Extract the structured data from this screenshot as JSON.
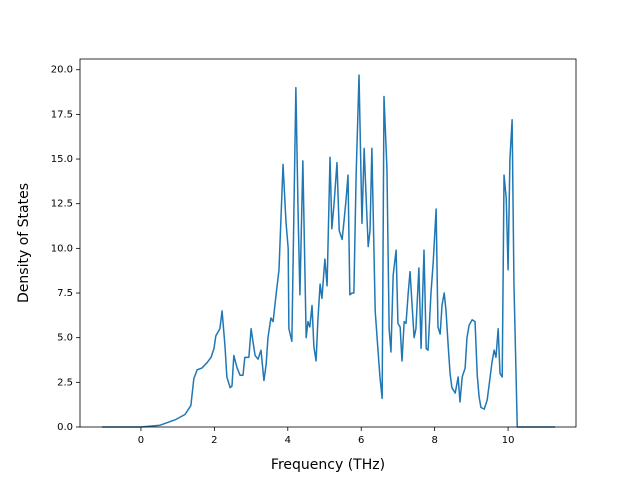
{
  "chart_data": {
    "type": "line",
    "xlabel": "Frequency (THz)",
    "ylabel": "Density of States",
    "color": "#1f77b4",
    "x": [
      -1.06,
      0,
      0.52,
      0.93,
      1.2,
      1.36,
      1.44,
      1.53,
      1.66,
      1.8,
      1.91,
      1.99,
      2.04,
      2.15,
      2.21,
      2.29,
      2.34,
      2.43,
      2.48,
      2.53,
      2.62,
      2.7,
      2.78,
      2.83,
      2.94,
      3.0,
      3.05,
      3.11,
      3.19,
      3.27,
      3.35,
      3.41,
      3.46,
      3.54,
      3.6,
      3.68,
      3.76,
      3.87,
      3.95,
      4.01,
      4.03,
      4.11,
      4.22,
      4.28,
      4.33,
      4.41,
      4.5,
      4.55,
      4.6,
      4.66,
      4.71,
      4.77,
      4.82,
      4.88,
      4.93,
      5.01,
      5.07,
      5.15,
      5.2,
      5.26,
      5.34,
      5.4,
      5.48,
      5.53,
      5.59,
      5.64,
      5.69,
      5.75,
      5.8,
      5.86,
      5.94,
      6.02,
      6.08,
      6.13,
      6.19,
      6.24,
      6.29,
      6.38,
      6.46,
      6.51,
      6.57,
      6.62,
      6.7,
      6.76,
      6.81,
      6.87,
      6.95,
      7.0,
      7.06,
      7.11,
      7.17,
      7.22,
      7.28,
      7.33,
      7.38,
      7.44,
      7.49,
      7.57,
      7.63,
      7.71,
      7.77,
      7.82,
      7.9,
      7.96,
      8.04,
      8.09,
      8.15,
      8.2,
      8.26,
      8.31,
      8.37,
      8.42,
      8.47,
      8.56,
      8.64,
      8.69,
      8.75,
      8.83,
      8.88,
      8.94,
      9.02,
      9.1,
      9.16,
      9.21,
      9.26,
      9.35,
      9.43,
      9.48,
      9.56,
      9.62,
      9.67,
      9.73,
      9.78,
      9.84,
      9.89,
      9.95,
      10.0,
      10.05,
      10.11,
      10.16,
      10.25,
      10.33,
      11.28
    ],
    "values": [
      0,
      0,
      0.1,
      0.4,
      0.7,
      1.2,
      2.7,
      3.2,
      3.3,
      3.6,
      3.9,
      4.4,
      5.1,
      5.5,
      6.5,
      4.5,
      2.8,
      2.2,
      2.3,
      4.0,
      3.3,
      2.9,
      2.9,
      3.9,
      3.9,
      5.5,
      4.8,
      4.0,
      3.8,
      4.3,
      2.6,
      3.5,
      5.0,
      6.1,
      5.9,
      7.4,
      8.8,
      14.7,
      11.5,
      10.0,
      5.5,
      4.8,
      19.0,
      12.0,
      7.4,
      14.9,
      5.0,
      5.9,
      5.6,
      6.8,
      4.5,
      3.7,
      6.0,
      8.0,
      7.2,
      9.4,
      7.9,
      15.1,
      11.1,
      12.5,
      14.8,
      11.0,
      10.5,
      11.5,
      12.8,
      14.1,
      7.4,
      7.5,
      7.5,
      14.0,
      19.7,
      11.4,
      15.6,
      13.0,
      10.1,
      11.0,
      15.6,
      6.5,
      4.2,
      2.8,
      1.6,
      18.5,
      14.5,
      5.5,
      4.2,
      8.5,
      9.9,
      5.8,
      5.6,
      3.7,
      5.9,
      5.8,
      7.5,
      8.7,
      7.0,
      5.0,
      5.5,
      8.9,
      4.4,
      9.9,
      4.4,
      4.3,
      7.5,
      9.2,
      12.2,
      5.6,
      5.2,
      6.8,
      7.5,
      6.5,
      4.5,
      3.0,
      2.2,
      1.9,
      2.8,
      1.4,
      2.8,
      3.3,
      5.0,
      5.7,
      6.0,
      5.9,
      2.9,
      1.7,
      1.1,
      1.0,
      1.5,
      2.3,
      3.6,
      4.3,
      3.9,
      5.5,
      3.0,
      2.8,
      14.1,
      12.8,
      8.8,
      15.0,
      17.2,
      8.0,
      0,
      0,
      0
    ],
    "xlim": [
      -1.66,
      11.85
    ],
    "ylim": [
      0,
      20.6
    ],
    "xticks": [
      0,
      2,
      4,
      6,
      8,
      10
    ],
    "yticks": [
      {
        "value": 0,
        "label": "0.0"
      },
      2.5,
      {
        "value": 5,
        "label": "5.0"
      },
      7.5,
      {
        "value": 10,
        "label": "10.0"
      },
      12.5,
      {
        "value": 15,
        "label": "15.0"
      },
      17.5,
      {
        "value": 20,
        "label": "20.0"
      }
    ]
  }
}
